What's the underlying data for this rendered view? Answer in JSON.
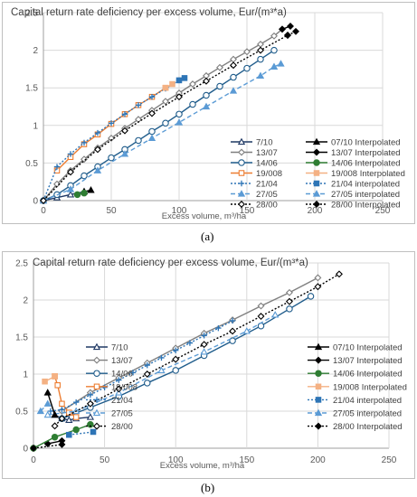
{
  "panel_labels": [
    "(a)",
    "(b)"
  ],
  "chart_data": [
    {
      "type": "line",
      "title": "Capital return rate deficiency per excess volume, Eur/(m³*a)",
      "xlabel": "Excess volume, m³/ha",
      "ylabel": "",
      "xlim": [
        0,
        250
      ],
      "ylim": [
        0,
        2.5
      ],
      "xticks": [
        "0",
        "50",
        "100",
        "150",
        "200",
        "250"
      ],
      "yticks": [
        "0",
        "0.5",
        "1",
        "1.5",
        "2",
        "2.5"
      ],
      "grid": true,
      "legend_position": "bottom-right",
      "series": [
        {
          "name": "7/10",
          "color": "#1f3864",
          "marker": "triangle-open",
          "dash": "solid",
          "x": [
            0,
            10,
            20,
            30
          ],
          "y": [
            0,
            0.04,
            0.08,
            0.12
          ]
        },
        {
          "name": "13/07",
          "color": "#7f7f7f",
          "marker": "diamond-open",
          "dash": "solid",
          "x": [
            0,
            10,
            20,
            30,
            40,
            50,
            60,
            70,
            80,
            90,
            100,
            110,
            120,
            130,
            140,
            150,
            160,
            170,
            176
          ],
          "y": [
            0,
            0.22,
            0.4,
            0.55,
            0.7,
            0.83,
            0.96,
            1.08,
            1.2,
            1.32,
            1.43,
            1.55,
            1.66,
            1.77,
            1.88,
            1.98,
            2.08,
            2.19,
            2.28
          ]
        },
        {
          "name": "14/06",
          "color": "#1f5c8b",
          "marker": "circle-open",
          "dash": "solid",
          "x": [
            0,
            10,
            20,
            30,
            40,
            50,
            60,
            70,
            80,
            90,
            100,
            110,
            120,
            130,
            140,
            150,
            160,
            170
          ],
          "y": [
            0,
            0.08,
            0.2,
            0.33,
            0.45,
            0.57,
            0.68,
            0.8,
            0.92,
            1.03,
            1.15,
            1.28,
            1.4,
            1.52,
            1.64,
            1.76,
            1.88,
            2.0
          ]
        },
        {
          "name": "19/008",
          "color": "#ed7d31",
          "marker": "square-open",
          "dash": "solid",
          "x": [
            10,
            20,
            30,
            40,
            50,
            60,
            70,
            80,
            90
          ],
          "y": [
            0.4,
            0.58,
            0.75,
            0.88,
            1.02,
            1.15,
            1.27,
            1.38,
            1.5
          ]
        },
        {
          "name": "21/04",
          "color": "#2e75b6",
          "marker": "plus",
          "dash": "dotted",
          "x": [
            0,
            10,
            20,
            30,
            40,
            50,
            60,
            70,
            80,
            90,
            100
          ],
          "y": [
            0,
            0.45,
            0.62,
            0.77,
            0.9,
            1.03,
            1.15,
            1.27,
            1.38,
            1.49,
            1.6
          ]
        },
        {
          "name": "27/05",
          "color": "#5b9bd5",
          "marker": "triangle-filled",
          "dash": "dashed",
          "x": [
            0,
            20,
            40,
            60,
            80,
            100,
            120,
            140,
            160,
            170
          ],
          "y": [
            0,
            0.15,
            0.4,
            0.62,
            0.83,
            1.04,
            1.25,
            1.46,
            1.66,
            1.78
          ]
        },
        {
          "name": "28/00",
          "color": "#000000",
          "marker": "diamond-open",
          "dash": "dotted",
          "x": [
            0,
            20,
            40,
            60,
            80,
            100,
            120,
            140,
            160,
            180
          ],
          "y": [
            0,
            0.38,
            0.68,
            0.93,
            1.16,
            1.38,
            1.59,
            1.8,
            2.0,
            2.2
          ]
        },
        {
          "name": "07/10 Interpolated",
          "color": "#000000",
          "marker": "triangle-filled",
          "dash": "solid",
          "x": [
            30,
            35
          ],
          "y": [
            0.12,
            0.14
          ]
        },
        {
          "name": "13/07 Interpolated",
          "color": "#000000",
          "marker": "diamond-filled",
          "dash": "solid",
          "x": [
            176,
            182
          ],
          "y": [
            2.28,
            2.32
          ]
        },
        {
          "name": "14/06 Interpolated",
          "color": "#2e7d32",
          "marker": "circle-filled",
          "dash": "solid",
          "x": [
            25,
            30
          ],
          "y": [
            0.08,
            0.1
          ]
        },
        {
          "name": "19/008 Interpolated",
          "color": "#f4b183",
          "marker": "square-filled",
          "dash": "solid",
          "x": [
            90,
            95
          ],
          "y": [
            1.5,
            1.55
          ]
        },
        {
          "name": "21/04 interpolated",
          "color": "#2e75b6",
          "marker": "square-filled",
          "dash": "dotted",
          "x": [
            100,
            104
          ],
          "y": [
            1.6,
            1.63
          ]
        },
        {
          "name": "27/05 interpolated",
          "color": "#5b9bd5",
          "marker": "triangle-filled",
          "dash": "dashed",
          "x": [
            170,
            175
          ],
          "y": [
            1.78,
            1.82
          ]
        },
        {
          "name": "28/00 Interpolated",
          "color": "#000000",
          "marker": "diamond-filled",
          "dash": "dotted",
          "x": [
            180,
            186
          ],
          "y": [
            2.2,
            2.25
          ]
        }
      ]
    },
    {
      "type": "line",
      "title": "Capital return rate deficiency per excess volume, Eur/(m³*a)",
      "xlabel": "Excess volume, m³/ha",
      "ylabel": "",
      "xlim": [
        0,
        250
      ],
      "ylim": [
        0,
        2.5
      ],
      "xticks": [
        "0",
        "50",
        "100",
        "150",
        "200",
        "250"
      ],
      "yticks": [
        "0",
        "0.5",
        "1",
        "1.5",
        "2",
        "2.5"
      ],
      "grid": true,
      "legend_position": "bottom-right",
      "series": [
        {
          "name": "7/10",
          "color": "#1f3864",
          "marker": "triangle-open",
          "dash": "solid",
          "x": [
            15,
            20,
            25,
            30,
            40
          ],
          "y": [
            0.45,
            0.4,
            0.38,
            0.4,
            0.42
          ]
        },
        {
          "name": "13/07",
          "color": "#7f7f7f",
          "marker": "diamond-open",
          "dash": "solid",
          "x": [
            20,
            40,
            60,
            80,
            100,
            120,
            140,
            160,
            180,
            200
          ],
          "y": [
            0.5,
            0.75,
            0.95,
            1.15,
            1.35,
            1.55,
            1.73,
            1.92,
            2.1,
            2.3
          ]
        },
        {
          "name": "14/06",
          "color": "#1f5c8b",
          "marker": "circle-open",
          "dash": "solid",
          "x": [
            20,
            40,
            60,
            80,
            100,
            120,
            140,
            160,
            180,
            195
          ],
          "y": [
            0.4,
            0.55,
            0.7,
            0.88,
            1.05,
            1.25,
            1.45,
            1.65,
            1.88,
            2.05
          ]
        },
        {
          "name": "19/008",
          "color": "#ed7d31",
          "marker": "square-open",
          "dash": "solid",
          "x": [
            15,
            17,
            20,
            25,
            30
          ],
          "y": [
            0.97,
            0.85,
            0.6,
            0.48,
            0.42
          ]
        },
        {
          "name": "21/04",
          "color": "#2e75b6",
          "marker": "plus",
          "dash": "dotted",
          "x": [
            12,
            20,
            30,
            40,
            50,
            60,
            70,
            80,
            90,
            100,
            110,
            120,
            130,
            140
          ],
          "y": [
            0.5,
            0.52,
            0.62,
            0.72,
            0.82,
            0.92,
            1.02,
            1.12,
            1.22,
            1.32,
            1.42,
            1.52,
            1.62,
            1.72
          ]
        },
        {
          "name": "27/05",
          "color": "#5b9bd5",
          "marker": "triangle-open",
          "dash": "dashed",
          "x": [
            10,
            30,
            60,
            90,
            120,
            150,
            170
          ],
          "y": [
            0.45,
            0.5,
            0.75,
            1.05,
            1.3,
            1.58,
            1.8
          ]
        },
        {
          "name": "28/00",
          "color": "#000000",
          "marker": "diamond-open",
          "dash": "dotted",
          "x": [
            15,
            20,
            40,
            60,
            80,
            100,
            120,
            140,
            160,
            180,
            200,
            215
          ],
          "y": [
            0.3,
            0.4,
            0.6,
            0.8,
            1.0,
            1.2,
            1.4,
            1.58,
            1.78,
            1.98,
            2.18,
            2.35
          ]
        },
        {
          "name": "07/10 Interpolated",
          "color": "#000000",
          "marker": "triangle-filled",
          "dash": "solid",
          "x": [
            10,
            15
          ],
          "y": [
            0.75,
            0.45
          ]
        },
        {
          "name": "13/07 Interpolated",
          "color": "#000000",
          "marker": "diamond-filled",
          "dash": "solid",
          "x": [
            10,
            20
          ],
          "y": [
            0.06,
            0.1
          ]
        },
        {
          "name": "14/06 Interpolated",
          "color": "#2e7d32",
          "marker": "circle-filled",
          "dash": "solid",
          "x": [
            0,
            15,
            30,
            40
          ],
          "y": [
            0.0,
            0.15,
            0.25,
            0.32
          ]
        },
        {
          "name": "19/008 Interpolated",
          "color": "#f4b183",
          "marker": "square-filled",
          "dash": "solid",
          "x": [
            8,
            15
          ],
          "y": [
            0.9,
            0.97
          ]
        },
        {
          "name": "21/04 interpolated",
          "color": "#2e75b6",
          "marker": "square-filled",
          "dash": "dotted",
          "x": [
            25,
            42
          ],
          "y": [
            0.18,
            0.22
          ]
        },
        {
          "name": "27/05 interpolated",
          "color": "#5b9bd5",
          "marker": "triangle-filled",
          "dash": "dashed",
          "x": [
            5,
            10
          ],
          "y": [
            0.5,
            0.6
          ]
        },
        {
          "name": "28/00 Interpolated",
          "color": "#000000",
          "marker": "diamond-filled",
          "dash": "dotted",
          "x": [
            0,
            20
          ],
          "y": [
            0.0,
            0.05
          ]
        }
      ]
    }
  ]
}
